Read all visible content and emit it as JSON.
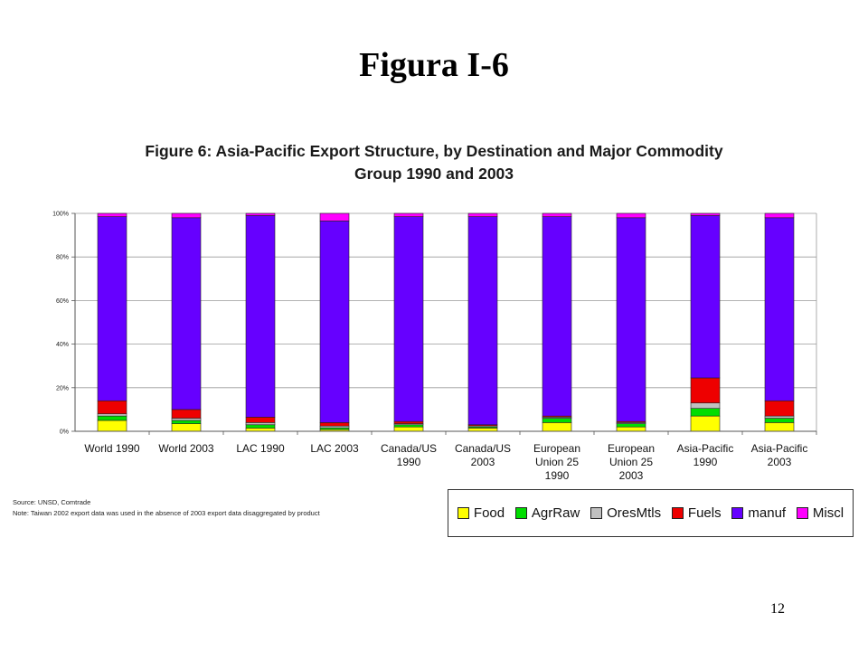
{
  "slide_title": "Figura I-6",
  "page_number": "12",
  "source_note": "Source:  UNSD, Comtrade",
  "footnote": "Note:  Taiwan 2002 export data was used in the absence of 2003 export data disaggregated by product",
  "chart_data": {
    "type": "bar",
    "stacked": true,
    "title": "Figure 6: Asia-Pacific Export Structure, by Destination and Major Commodity",
    "title_line2": "Group 1990 and 2003",
    "categories": [
      [
        "World 1990"
      ],
      [
        "World 2003"
      ],
      [
        "LAC 1990"
      ],
      [
        "LAC 2003"
      ],
      [
        "Canada/US",
        "1990"
      ],
      [
        "Canada/US",
        "2003"
      ],
      [
        "European",
        "Union 25",
        "1990"
      ],
      [
        "European",
        "Union 25",
        "2003"
      ],
      [
        "Asia-Pacific",
        "1990"
      ],
      [
        "Asia-Pacific",
        "2003"
      ]
    ],
    "yticks": [
      "0%",
      "20%",
      "40%",
      "60%",
      "80%",
      "100%"
    ],
    "ylim": [
      0,
      100
    ],
    "grid": true,
    "legend_position": "bottom-right",
    "series": [
      {
        "name": "Food",
        "color": "#ffff00",
        "values": [
          5,
          3.5,
          1.5,
          0.8,
          2,
          1.5,
          4,
          2,
          7,
          4
        ]
      },
      {
        "name": "AgrRaw",
        "color": "#00dd00",
        "values": [
          2,
          1.5,
          1.5,
          0.8,
          1,
          0.5,
          2,
          1.5,
          3.5,
          2
        ]
      },
      {
        "name": "OresMtls",
        "color": "#c0c0c0",
        "values": [
          1,
          1,
          1,
          0.8,
          0.5,
          0.5,
          0.5,
          0.5,
          2.5,
          1
        ]
      },
      {
        "name": "Fuels",
        "color": "#ee0000",
        "values": [
          6,
          4,
          2.5,
          1.6,
          1,
          0.5,
          0.5,
          0.5,
          11.5,
          7
        ]
      },
      {
        "name": "manuf",
        "color": "#6600ff",
        "values": [
          84.5,
          88,
          92.5,
          92.5,
          94,
          95.5,
          91.5,
          93.5,
          74.5,
          84
        ]
      },
      {
        "name": "Miscl",
        "color": "#ff00ff",
        "values": [
          1.5,
          2,
          1,
          3.5,
          1.5,
          1.5,
          1.5,
          2,
          1,
          2
        ]
      }
    ]
  }
}
